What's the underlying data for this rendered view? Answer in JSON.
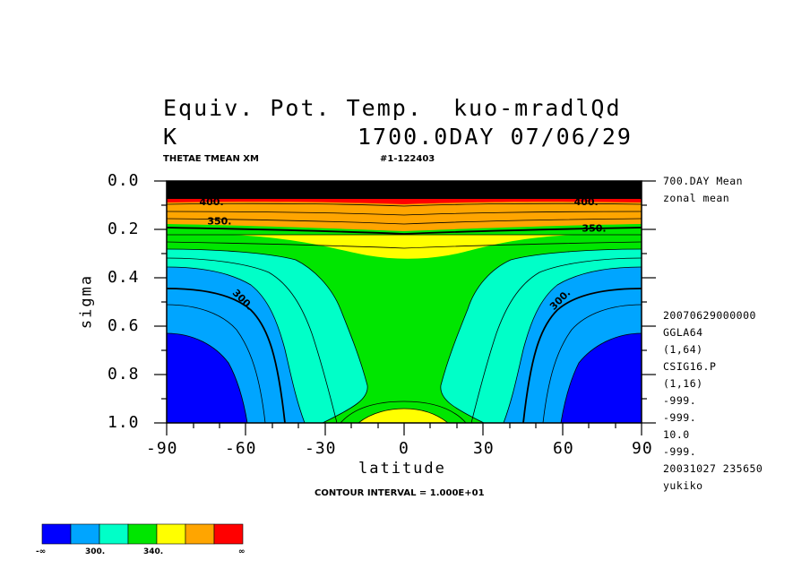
{
  "title": {
    "line1": "Equiv. Pot. Temp.  kuo-mradlQd",
    "line2_left": "K",
    "line2_right": "1700.0DAY 07/06/29"
  },
  "subtitle": {
    "left": "THETAE TMEAN XM",
    "right": "#1-122403"
  },
  "side_info": {
    "mean": "700.DAY Mean",
    "zonal": "zonal mean",
    "lines": [
      "20070629000000",
      "GGLA64",
      "(1,64)",
      "CSIG16.P",
      "(1,16)",
      "-999.",
      "-999.",
      "10.0",
      "-999.",
      "20031027 235650",
      "yukiko"
    ]
  },
  "contour_interval": "CONTOUR INTERVAL = 1.000E+01",
  "colorbar": {
    "colors": [
      "#0000ff",
      "#00a5ff",
      "#00ffc8",
      "#00e600",
      "#ffff00",
      "#ffa500",
      "#ff0000"
    ],
    "labels": [
      "-∞",
      "300.",
      "340.",
      "∞"
    ]
  },
  "chart_data": {
    "type": "contour",
    "xlabel": "latitude",
    "ylabel": "sigma",
    "xlim": [
      -90,
      90
    ],
    "ylim": [
      1.0,
      0.0
    ],
    "x_ticks": [
      "-90",
      "-60",
      "-30",
      "0",
      "30",
      "60",
      "90"
    ],
    "y_ticks": [
      "0.0",
      "0.2",
      "0.4",
      "0.6",
      "0.8",
      "1.0"
    ],
    "contour_labels": [
      {
        "text": "350.",
        "lat": -70,
        "sigma": 0.18
      },
      {
        "text": "350.",
        "lat": 72,
        "sigma": 0.21
      },
      {
        "text": "300.",
        "lat": -62,
        "sigma": 0.5
      },
      {
        "text": "300.",
        "lat": 60,
        "sigma": 0.5
      },
      {
        "text": "400.",
        "lat": -73,
        "sigma": 0.1
      },
      {
        "text": "400.",
        "lat": 69,
        "sigma": 0.1
      }
    ]
  }
}
